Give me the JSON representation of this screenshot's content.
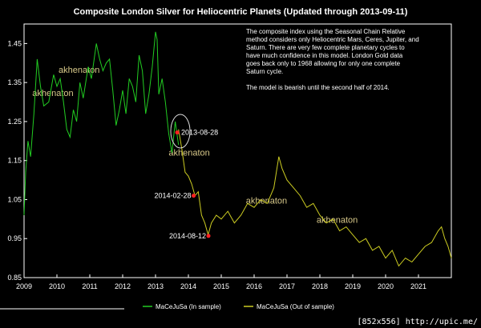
{
  "chart_data": {
    "type": "line",
    "title": "Composite London Silver for Heliocentric Planets (Updated through 2013-09-11)",
    "xlabel": "",
    "ylabel": "",
    "xlim": [
      2009,
      2022
    ],
    "ylim": [
      0.85,
      1.5
    ],
    "x_ticks": [
      "2009",
      "2010",
      "2011",
      "2012",
      "2013",
      "2014",
      "2015",
      "2016",
      "2017",
      "2018",
      "2019",
      "2020",
      "2021"
    ],
    "y_ticks": [
      "0.85",
      "0.95",
      "1.05",
      "1.15",
      "1.25",
      "1.35",
      "1.45"
    ],
    "series": [
      {
        "name": "MaCeJuSa (In sample)",
        "color": "#22cc22",
        "x": [
          2009.0,
          2009.05,
          2009.12,
          2009.2,
          2009.3,
          2009.4,
          2009.5,
          2009.6,
          2009.75,
          2009.9,
          2010.0,
          2010.1,
          2010.2,
          2010.3,
          2010.4,
          2010.5,
          2010.6,
          2010.7,
          2010.8,
          2010.95,
          2011.05,
          2011.2,
          2011.3,
          2011.4,
          2011.5,
          2011.6,
          2011.7,
          2011.8,
          2011.9,
          2012.0,
          2012.1,
          2012.2,
          2012.3,
          2012.4,
          2012.5,
          2012.6,
          2012.7,
          2012.8,
          2012.9,
          2013.0,
          2013.05,
          2013.1,
          2013.2,
          2013.3,
          2013.4,
          2013.5,
          2013.6,
          2013.7
        ],
        "values": [
          1.01,
          1.12,
          1.2,
          1.16,
          1.27,
          1.41,
          1.34,
          1.29,
          1.3,
          1.37,
          1.34,
          1.36,
          1.3,
          1.23,
          1.21,
          1.28,
          1.25,
          1.35,
          1.31,
          1.39,
          1.36,
          1.45,
          1.41,
          1.38,
          1.4,
          1.41,
          1.33,
          1.24,
          1.28,
          1.33,
          1.27,
          1.36,
          1.34,
          1.3,
          1.42,
          1.38,
          1.27,
          1.32,
          1.39,
          1.48,
          1.46,
          1.32,
          1.36,
          1.3,
          1.22,
          1.17,
          1.25,
          1.19
        ]
      },
      {
        "name": "MaCeJuSa (Out of sample)",
        "color": "#cccc22",
        "x": [
          2013.7,
          2013.8,
          2013.9,
          2014.0,
          2014.1,
          2014.2,
          2014.3,
          2014.4,
          2014.5,
          2014.6,
          2014.7,
          2014.85,
          2015.0,
          2015.2,
          2015.4,
          2015.6,
          2015.8,
          2016.0,
          2016.2,
          2016.4,
          2016.6,
          2016.75,
          2016.85,
          2017.0,
          2017.2,
          2017.4,
          2017.6,
          2017.8,
          2018.0,
          2018.2,
          2018.4,
          2018.6,
          2018.8,
          2019.0,
          2019.2,
          2019.4,
          2019.6,
          2019.8,
          2020.0,
          2020.2,
          2020.4,
          2020.6,
          2020.8,
          2021.0,
          2021.2,
          2021.4,
          2021.6,
          2021.7,
          2021.8,
          2021.9,
          2022.0
        ],
        "values": [
          1.23,
          1.18,
          1.12,
          1.11,
          1.09,
          1.06,
          1.07,
          1.01,
          0.99,
          0.96,
          0.99,
          1.01,
          1.0,
          1.02,
          0.99,
          1.01,
          1.04,
          1.03,
          1.05,
          1.04,
          1.08,
          1.16,
          1.13,
          1.1,
          1.08,
          1.06,
          1.03,
          1.04,
          1.01,
          0.99,
          1.0,
          0.97,
          0.98,
          0.96,
          0.94,
          0.95,
          0.92,
          0.93,
          0.9,
          0.92,
          0.88,
          0.9,
          0.89,
          0.91,
          0.93,
          0.94,
          0.97,
          0.98,
          0.95,
          0.93,
          0.9
        ]
      }
    ],
    "highlight_points": [
      {
        "label": "2013-08-28",
        "x": 2013.66,
        "y": 1.222
      },
      {
        "label": "2014-02-28",
        "x": 2014.16,
        "y": 1.06
      },
      {
        "label": "2014-08-12",
        "x": 2014.61,
        "y": 0.957
      }
    ],
    "watermarks": [
      {
        "text": "akhenaton",
        "x": 2010.05,
        "y": 1.375
      },
      {
        "text": "akhenaton",
        "x": 2009.25,
        "y": 1.315
      },
      {
        "text": "akhenaton",
        "x": 2013.4,
        "y": 1.163
      },
      {
        "text": "akhenaton",
        "x": 2015.75,
        "y": 1.04
      },
      {
        "text": "akhenaton",
        "x": 2017.9,
        "y": 0.99
      }
    ],
    "annotation": [
      "The composite index using the Seasonal Chain Relative",
      "method considers only Heliocentric Mars, Ceres, Jupiter, and",
      "Saturn.  There are very few complete planetary cycles to",
      "have much confidence in this model.  London Gold data",
      "goes back only to 1968 allowing for only one complete",
      "Saturn cycle.",
      "",
      "The model is bearish until the second half of 2014."
    ],
    "legend_position": "bottom"
  },
  "footer_text": "[852x556] http://upic.me/"
}
